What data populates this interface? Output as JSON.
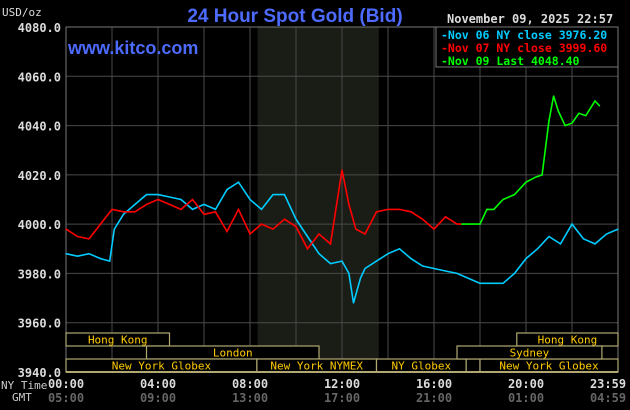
{
  "chart_data": {
    "type": "line",
    "title": "24 Hour Spot Gold (Bid)",
    "site": "www.kitco.com",
    "timestamp": "November 09, 2025 22:57",
    "ylabel": "USD/oz",
    "ylim": [
      3940,
      4080
    ],
    "y_ticks": [
      "4080.0",
      "4060.0",
      "4040.0",
      "4020.0",
      "4000.0",
      "3980.0",
      "3960.0",
      "3940.0"
    ],
    "y_tick_values": [
      4080,
      4060,
      4040,
      4020,
      4000,
      3980,
      3960,
      3940
    ],
    "xlim_hours": [
      0,
      24
    ],
    "x_row_labels": {
      "ny": "NY Time",
      "gmt": "GMT"
    },
    "x_ticks": [
      {
        "h": 0,
        "ny": "00:00",
        "gmt": "05:00"
      },
      {
        "h": 4,
        "ny": "04:00",
        "gmt": "09:00"
      },
      {
        "h": 8,
        "ny": "08:00",
        "gmt": "13:00"
      },
      {
        "h": 12,
        "ny": "12:00",
        "gmt": "17:00"
      },
      {
        "h": 16,
        "ny": "16:00",
        "gmt": "21:00"
      },
      {
        "h": 20,
        "ny": "20:00",
        "gmt": "01:00"
      },
      {
        "h": 24,
        "ny": "23:59",
        "gmt": "04:59"
      }
    ],
    "grid": true,
    "shaded_hours": [
      8.33,
      13.6
    ],
    "legend": [
      {
        "label": "Nov 06 NY close 3976.20",
        "color": "#00ccff"
      },
      {
        "label": "Nov 07 NY close 3999.60",
        "color": "#ff0000"
      },
      {
        "label": "Nov 09 Last 4048.40",
        "color": "#00ff00"
      }
    ],
    "series": [
      {
        "name": "Nov 06",
        "color": "#00ccff",
        "x": [
          0,
          0.5,
          1,
          1.5,
          1.9,
          2.1,
          2.5,
          3,
          3.5,
          4,
          4.5,
          5,
          5.5,
          6,
          6.5,
          7,
          7.5,
          8,
          8.5,
          9,
          9.5,
          10,
          10.5,
          11,
          11.5,
          12,
          12.3,
          12.5,
          12.8,
          13,
          13.5,
          14,
          14.5,
          15,
          15.5,
          16,
          16.5,
          17,
          17.5,
          18,
          18.5,
          19,
          19.5,
          20,
          20.5,
          21,
          21.5,
          22,
          22.5,
          23,
          23.5,
          24
        ],
        "values": [
          3988,
          3987,
          3988,
          3986,
          3985,
          3998,
          4004,
          4008,
          4012,
          4012,
          4011,
          4010,
          4006,
          4008,
          4006,
          4014,
          4017,
          4010,
          4006,
          4012,
          4012,
          4002,
          3995,
          3988,
          3984,
          3985,
          3980,
          3968,
          3978,
          3982,
          3985,
          3988,
          3990,
          3986,
          3983,
          3982,
          3981,
          3980,
          3978,
          3976,
          3976,
          3976,
          3980,
          3986,
          3990,
          3995,
          3992,
          4000,
          3994,
          3992,
          3996,
          3998
        ]
      },
      {
        "name": "Nov 07",
        "color": "#ff0000",
        "x": [
          0,
          0.5,
          1,
          1.5,
          2,
          2.5,
          3,
          3.5,
          4,
          4.5,
          5,
          5.5,
          6,
          6.5,
          7,
          7.5,
          8,
          8.5,
          9,
          9.5,
          10,
          10.5,
          11,
          11.5,
          12,
          12.3,
          12.6,
          13,
          13.5,
          14,
          14.5,
          15,
          15.5,
          16,
          16.5,
          17,
          17.2
        ],
        "values": [
          3998,
          3995,
          3994,
          4000,
          4006,
          4005,
          4005,
          4008,
          4010,
          4008,
          4006,
          4010,
          4004,
          4005,
          3997,
          4006,
          3996,
          4000,
          3998,
          4002,
          3999,
          3990,
          3996,
          3992,
          4022,
          4008,
          3998,
          3996,
          4005,
          4006,
          4006,
          4005,
          4002,
          3998,
          4003,
          4000,
          4000
        ]
      },
      {
        "name": "Nov 09",
        "color": "#00ff00",
        "x": [
          17.2,
          17.5,
          18,
          18.3,
          18.6,
          19,
          19.5,
          20,
          20.4,
          20.7,
          21,
          21.2,
          21.4,
          21.7,
          22,
          22.3,
          22.6,
          23,
          23.2
        ],
        "values": [
          4000,
          4000,
          4000,
          4006,
          4006,
          4010,
          4012,
          4017,
          4019,
          4020,
          4042,
          4052,
          4046,
          4040,
          4041,
          4045,
          4044,
          4050,
          4048
        ]
      }
    ],
    "sessions": [
      {
        "label": "Hong Kong",
        "start": 0,
        "end": 4.5,
        "row": 0
      },
      {
        "label": "London",
        "start": 3.5,
        "end": 11,
        "row": 1
      },
      {
        "label": "New York Globex",
        "start": 0,
        "end": 8.3,
        "row": 2
      },
      {
        "label": "New York NYMEX",
        "start": 8.3,
        "end": 13.5,
        "row": 2
      },
      {
        "label": "NY Globex",
        "start": 13.5,
        "end": 17.4,
        "row": 2
      },
      {
        "label": "",
        "start": 17.4,
        "end": 18,
        "row": 2
      },
      {
        "label": "New York Globex",
        "start": 18,
        "end": 24,
        "row": 2
      },
      {
        "label": "Hong Kong",
        "start": 19.6,
        "end": 24,
        "row": 0
      },
      {
        "label": "Sydney",
        "start": 17,
        "end": 23.3,
        "row": 1
      }
    ]
  }
}
